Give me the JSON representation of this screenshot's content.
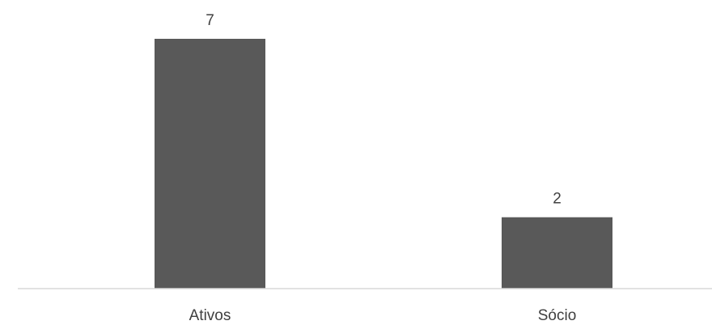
{
  "chart_data": {
    "type": "bar",
    "categories": [
      "Ativos",
      "Sócio"
    ],
    "values": [
      7,
      2
    ],
    "title": "",
    "xlabel": "",
    "ylabel": "",
    "ylim": [
      0,
      7
    ],
    "grid": false,
    "legend": "none",
    "data_labels": [
      "7",
      "2"
    ],
    "colors": {
      "bar": "#595959",
      "axis": "#d9d9d9",
      "text": "#404040"
    }
  }
}
